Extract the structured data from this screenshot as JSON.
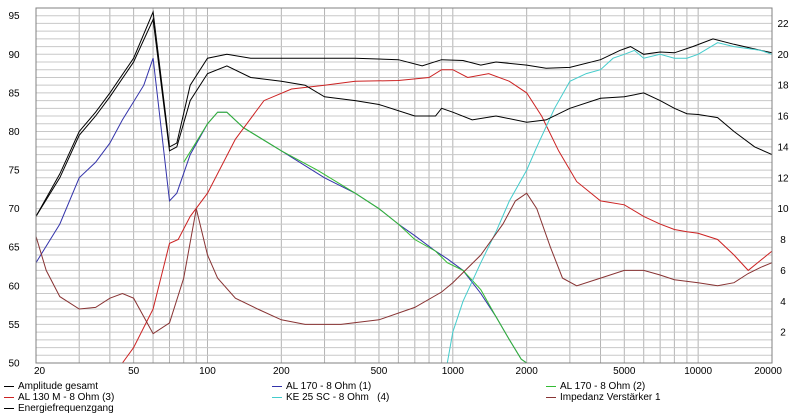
{
  "chart_data": {
    "type": "line",
    "x_scale": "log",
    "xlim": [
      20,
      20000
    ],
    "ylim_left": [
      50,
      96
    ],
    "ylim_right": [
      0,
      23
    ],
    "grid": true,
    "x_ticks": [
      20,
      50,
      100,
      200,
      500,
      1000,
      2000,
      5000,
      10000,
      20000
    ],
    "x_tick_labels": [
      "20",
      "50",
      "100",
      "200",
      "500",
      "1000",
      "2000",
      "5000",
      "10000",
      "20000"
    ],
    "y_left_ticks": [
      50,
      55,
      60,
      65,
      70,
      75,
      80,
      85,
      90,
      95
    ],
    "y_right_ticks": [
      2,
      4,
      6,
      8,
      10,
      12,
      14,
      16,
      18,
      20,
      22
    ],
    "legend_position": "bottom",
    "series": [
      {
        "name": "Amplitude gesamt",
        "color": "#000000",
        "axis": "left",
        "points": [
          [
            20,
            69
          ],
          [
            25,
            74.5
          ],
          [
            30,
            80
          ],
          [
            35,
            82.5
          ],
          [
            40,
            85
          ],
          [
            50,
            89.5
          ],
          [
            60,
            95.5
          ],
          [
            70,
            78
          ],
          [
            75,
            78.5
          ],
          [
            85,
            86
          ],
          [
            100,
            89.5
          ],
          [
            120,
            90
          ],
          [
            150,
            89.5
          ],
          [
            180,
            89.5
          ],
          [
            250,
            89.5
          ],
          [
            400,
            89.5
          ],
          [
            600,
            89.3
          ],
          [
            750,
            88.5
          ],
          [
            900,
            89.3
          ],
          [
            1100,
            89.2
          ],
          [
            1300,
            88.6
          ],
          [
            1500,
            89
          ],
          [
            2000,
            88.6
          ],
          [
            2400,
            88.2
          ],
          [
            3000,
            88.3
          ],
          [
            4000,
            89.3
          ],
          [
            4800,
            90.5
          ],
          [
            5300,
            91
          ],
          [
            6000,
            90
          ],
          [
            7000,
            90.3
          ],
          [
            8000,
            90.2
          ],
          [
            9500,
            91
          ],
          [
            11500,
            92
          ],
          [
            14000,
            91.3
          ],
          [
            18000,
            90.5
          ],
          [
            20000,
            90.2
          ]
        ]
      },
      {
        "name": "AL 170 - 8 Ohm (1)",
        "color": "#3333aa",
        "axis": "left",
        "points": [
          [
            20,
            63
          ],
          [
            25,
            68
          ],
          [
            30,
            74
          ],
          [
            35,
            76
          ],
          [
            40,
            78.5
          ],
          [
            45,
            81.5
          ],
          [
            55,
            86
          ],
          [
            60,
            89.5
          ],
          [
            70,
            71
          ],
          [
            75,
            72
          ],
          [
            85,
            77
          ],
          [
            100,
            81
          ],
          [
            110,
            82.5
          ],
          [
            120,
            82.5
          ],
          [
            140,
            80.5
          ],
          [
            200,
            77.5
          ],
          [
            300,
            74
          ],
          [
            400,
            72
          ],
          [
            500,
            70
          ],
          [
            600,
            68
          ],
          [
            700,
            66.5
          ],
          [
            850,
            64.5
          ],
          [
            950,
            63.5
          ],
          [
            1100,
            62
          ],
          [
            1300,
            59
          ],
          [
            1500,
            56
          ],
          [
            1700,
            53
          ],
          [
            1900,
            50.5
          ],
          [
            2000,
            50
          ]
        ]
      },
      {
        "name": "AL 170 - 8 Ohm (2)",
        "color": "#33bb33",
        "axis": "left",
        "points": [
          [
            80,
            76
          ],
          [
            100,
            81
          ],
          [
            110,
            82.5
          ],
          [
            120,
            82.5
          ],
          [
            140,
            80.5
          ],
          [
            200,
            77.5
          ],
          [
            280,
            75
          ],
          [
            400,
            72
          ],
          [
            500,
            70
          ],
          [
            600,
            68
          ],
          [
            700,
            66
          ],
          [
            850,
            64.5
          ],
          [
            950,
            63
          ],
          [
            1100,
            62
          ],
          [
            1300,
            59.5
          ],
          [
            1500,
            56
          ],
          [
            1700,
            53
          ],
          [
            1900,
            50.5
          ],
          [
            2000,
            50
          ]
        ]
      },
      {
        "name": "AL 130 M - 8 Ohm (3)",
        "color": "#cc2222",
        "axis": "left",
        "points": [
          [
            20,
            50
          ],
          [
            45,
            50
          ],
          [
            50,
            52
          ],
          [
            60,
            57
          ],
          [
            70,
            65.5
          ],
          [
            76,
            66
          ],
          [
            85,
            69
          ],
          [
            100,
            72
          ],
          [
            130,
            79
          ],
          [
            170,
            84
          ],
          [
            220,
            85.5
          ],
          [
            300,
            86
          ],
          [
            400,
            86.5
          ],
          [
            600,
            86.6
          ],
          [
            800,
            87
          ],
          [
            900,
            88
          ],
          [
            1000,
            88
          ],
          [
            1150,
            87
          ],
          [
            1400,
            87.5
          ],
          [
            1700,
            86.5
          ],
          [
            2000,
            85
          ],
          [
            2300,
            82
          ],
          [
            2700,
            77.5
          ],
          [
            3200,
            73.5
          ],
          [
            4000,
            71
          ],
          [
            5000,
            70.5
          ],
          [
            6000,
            69
          ],
          [
            7000,
            68
          ],
          [
            8000,
            67.3
          ],
          [
            9000,
            67
          ],
          [
            10000,
            66.8
          ],
          [
            12000,
            66
          ],
          [
            14000,
            64
          ],
          [
            16000,
            62
          ],
          [
            20000,
            64.5
          ]
        ]
      },
      {
        "name": "KE 25 SC - 8 Ohm   (4)",
        "color": "#44cccc",
        "axis": "left",
        "points": [
          [
            850,
            50
          ],
          [
            950,
            50
          ],
          [
            1000,
            54
          ],
          [
            1100,
            58
          ],
          [
            1300,
            63
          ],
          [
            1500,
            67
          ],
          [
            1700,
            71
          ],
          [
            2000,
            75
          ],
          [
            2200,
            78
          ],
          [
            2600,
            83
          ],
          [
            3000,
            86.5
          ],
          [
            3500,
            87.5
          ],
          [
            4000,
            88
          ],
          [
            4500,
            89.5
          ],
          [
            5000,
            90
          ],
          [
            5500,
            90.5
          ],
          [
            6000,
            89.5
          ],
          [
            7000,
            90
          ],
          [
            8000,
            89.5
          ],
          [
            9000,
            89.5
          ],
          [
            10000,
            90
          ],
          [
            12000,
            91.5
          ],
          [
            14000,
            91
          ],
          [
            18000,
            90.5
          ],
          [
            20000,
            90
          ]
        ]
      },
      {
        "name": "Impedanz Verstärker 1",
        "color": "#883333",
        "axis": "right",
        "points": [
          [
            20,
            8.2
          ],
          [
            22,
            6
          ],
          [
            25,
            4.3
          ],
          [
            30,
            3.5
          ],
          [
            35,
            3.6
          ],
          [
            40,
            4.2
          ],
          [
            45,
            4.5
          ],
          [
            50,
            4.2
          ],
          [
            55,
            3
          ],
          [
            60,
            1.9
          ],
          [
            70,
            2.6
          ],
          [
            80,
            5.5
          ],
          [
            90,
            10
          ],
          [
            100,
            7
          ],
          [
            110,
            5.5
          ],
          [
            130,
            4.2
          ],
          [
            160,
            3.5
          ],
          [
            200,
            2.8
          ],
          [
            250,
            2.5
          ],
          [
            350,
            2.5
          ],
          [
            500,
            2.8
          ],
          [
            700,
            3.6
          ],
          [
            900,
            4.6
          ],
          [
            1000,
            5.2
          ],
          [
            1300,
            7
          ],
          [
            1600,
            9
          ],
          [
            1800,
            10.5
          ],
          [
            2000,
            11
          ],
          [
            2200,
            10
          ],
          [
            2500,
            7.5
          ],
          [
            2800,
            5.5
          ],
          [
            3200,
            5
          ],
          [
            4000,
            5.5
          ],
          [
            5000,
            6
          ],
          [
            6000,
            6
          ],
          [
            7000,
            5.7
          ],
          [
            8000,
            5.4
          ],
          [
            10000,
            5.2
          ],
          [
            12000,
            5
          ],
          [
            14000,
            5.2
          ],
          [
            16000,
            5.8
          ],
          [
            18000,
            6.2
          ],
          [
            20000,
            6.5
          ]
        ]
      },
      {
        "name": "Energiefrequenzgang",
        "color": "#000000",
        "axis": "left",
        "points": [
          [
            20,
            69
          ],
          [
            25,
            74
          ],
          [
            30,
            79.5
          ],
          [
            35,
            82
          ],
          [
            40,
            84.5
          ],
          [
            50,
            89
          ],
          [
            60,
            94.5
          ],
          [
            70,
            77.5
          ],
          [
            75,
            78
          ],
          [
            85,
            84
          ],
          [
            100,
            87.5
          ],
          [
            120,
            88.5
          ],
          [
            150,
            87
          ],
          [
            200,
            86.5
          ],
          [
            250,
            86
          ],
          [
            300,
            84.5
          ],
          [
            400,
            84
          ],
          [
            500,
            83.5
          ],
          [
            700,
            82
          ],
          [
            850,
            82
          ],
          [
            900,
            83
          ],
          [
            1000,
            82.5
          ],
          [
            1200,
            81.5
          ],
          [
            1500,
            82
          ],
          [
            2000,
            81.2
          ],
          [
            2400,
            81.5
          ],
          [
            3000,
            83
          ],
          [
            4000,
            84.3
          ],
          [
            5000,
            84.5
          ],
          [
            6000,
            85
          ],
          [
            7000,
            84
          ],
          [
            8000,
            83
          ],
          [
            9000,
            82.3
          ],
          [
            10000,
            82.2
          ],
          [
            12000,
            81.8
          ],
          [
            14000,
            80
          ],
          [
            17000,
            78
          ],
          [
            20000,
            77
          ]
        ]
      }
    ]
  },
  "legend": [
    {
      "label": "Amplitude gesamt",
      "color": "#000000"
    },
    {
      "label": "AL 170 - 8 Ohm (1)",
      "color": "#3333aa"
    },
    {
      "label": "AL 170 - 8 Ohm (2)",
      "color": "#33bb33"
    },
    {
      "label": "AL 130 M - 8 Ohm (3)",
      "color": "#cc2222"
    },
    {
      "label": "KE 25 SC - 8 Ohm   (4)",
      "color": "#44cccc"
    },
    {
      "label": "Impedanz Verstärker 1",
      "color": "#883333"
    },
    {
      "label": "Energiefrequenzgang",
      "color": "#000000"
    }
  ]
}
